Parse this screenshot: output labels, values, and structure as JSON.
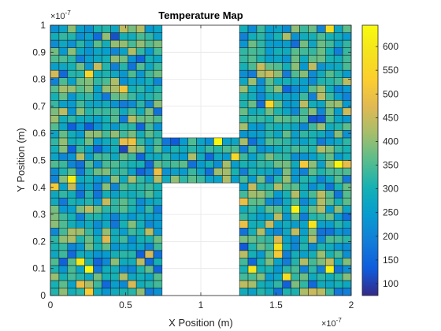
{
  "chart_data": {
    "type": "heatmap",
    "title": "Temperature Map",
    "xlabel": "X Position (m)",
    "ylabel": "Y Position (m)",
    "x_exponent_label": "×10",
    "x_exponent_power": "-7",
    "y_exponent_label": "×10",
    "y_exponent_power": "-7",
    "xlim": [
      0,
      2
    ],
    "ylim": [
      0,
      1
    ],
    "x_ticks": [
      "0",
      "0.5",
      "1",
      "1.5",
      "2"
    ],
    "x_tick_values": [
      0,
      0.5,
      1,
      1.5,
      2
    ],
    "y_ticks": [
      "0",
      "0.1",
      "0.2",
      "0.3",
      "0.4",
      "0.5",
      "0.6",
      "0.7",
      "0.8",
      "0.9",
      "1"
    ],
    "y_tick_values": [
      0,
      0.1,
      0.2,
      0.3,
      0.4,
      0.5,
      0.6,
      0.7,
      0.8,
      0.9,
      1
    ],
    "grid": true,
    "colorbar": {
      "range": [
        75,
        645
      ],
      "ticks": [
        100,
        150,
        200,
        250,
        300,
        350,
        400,
        450,
        500,
        550,
        600
      ],
      "tick_labels": [
        "100",
        "150",
        "200",
        "250",
        "300",
        "350",
        "400",
        "450",
        "500",
        "550",
        "600"
      ],
      "colormap": "parula"
    },
    "grid_cells_x": 35,
    "grid_cells_y": 36,
    "filled_regions_x1e7": [
      {
        "x": [
          0,
          0.76
        ],
        "y": [
          0,
          1
        ]
      },
      {
        "x": [
          1.24,
          2
        ],
        "y": [
          0,
          1
        ]
      },
      {
        "x": [
          0.76,
          1.24
        ],
        "y": [
          0.415,
          0.595
        ]
      }
    ],
    "value_distribution": {
      "typical": 300,
      "min": 90,
      "max": 640
    }
  }
}
